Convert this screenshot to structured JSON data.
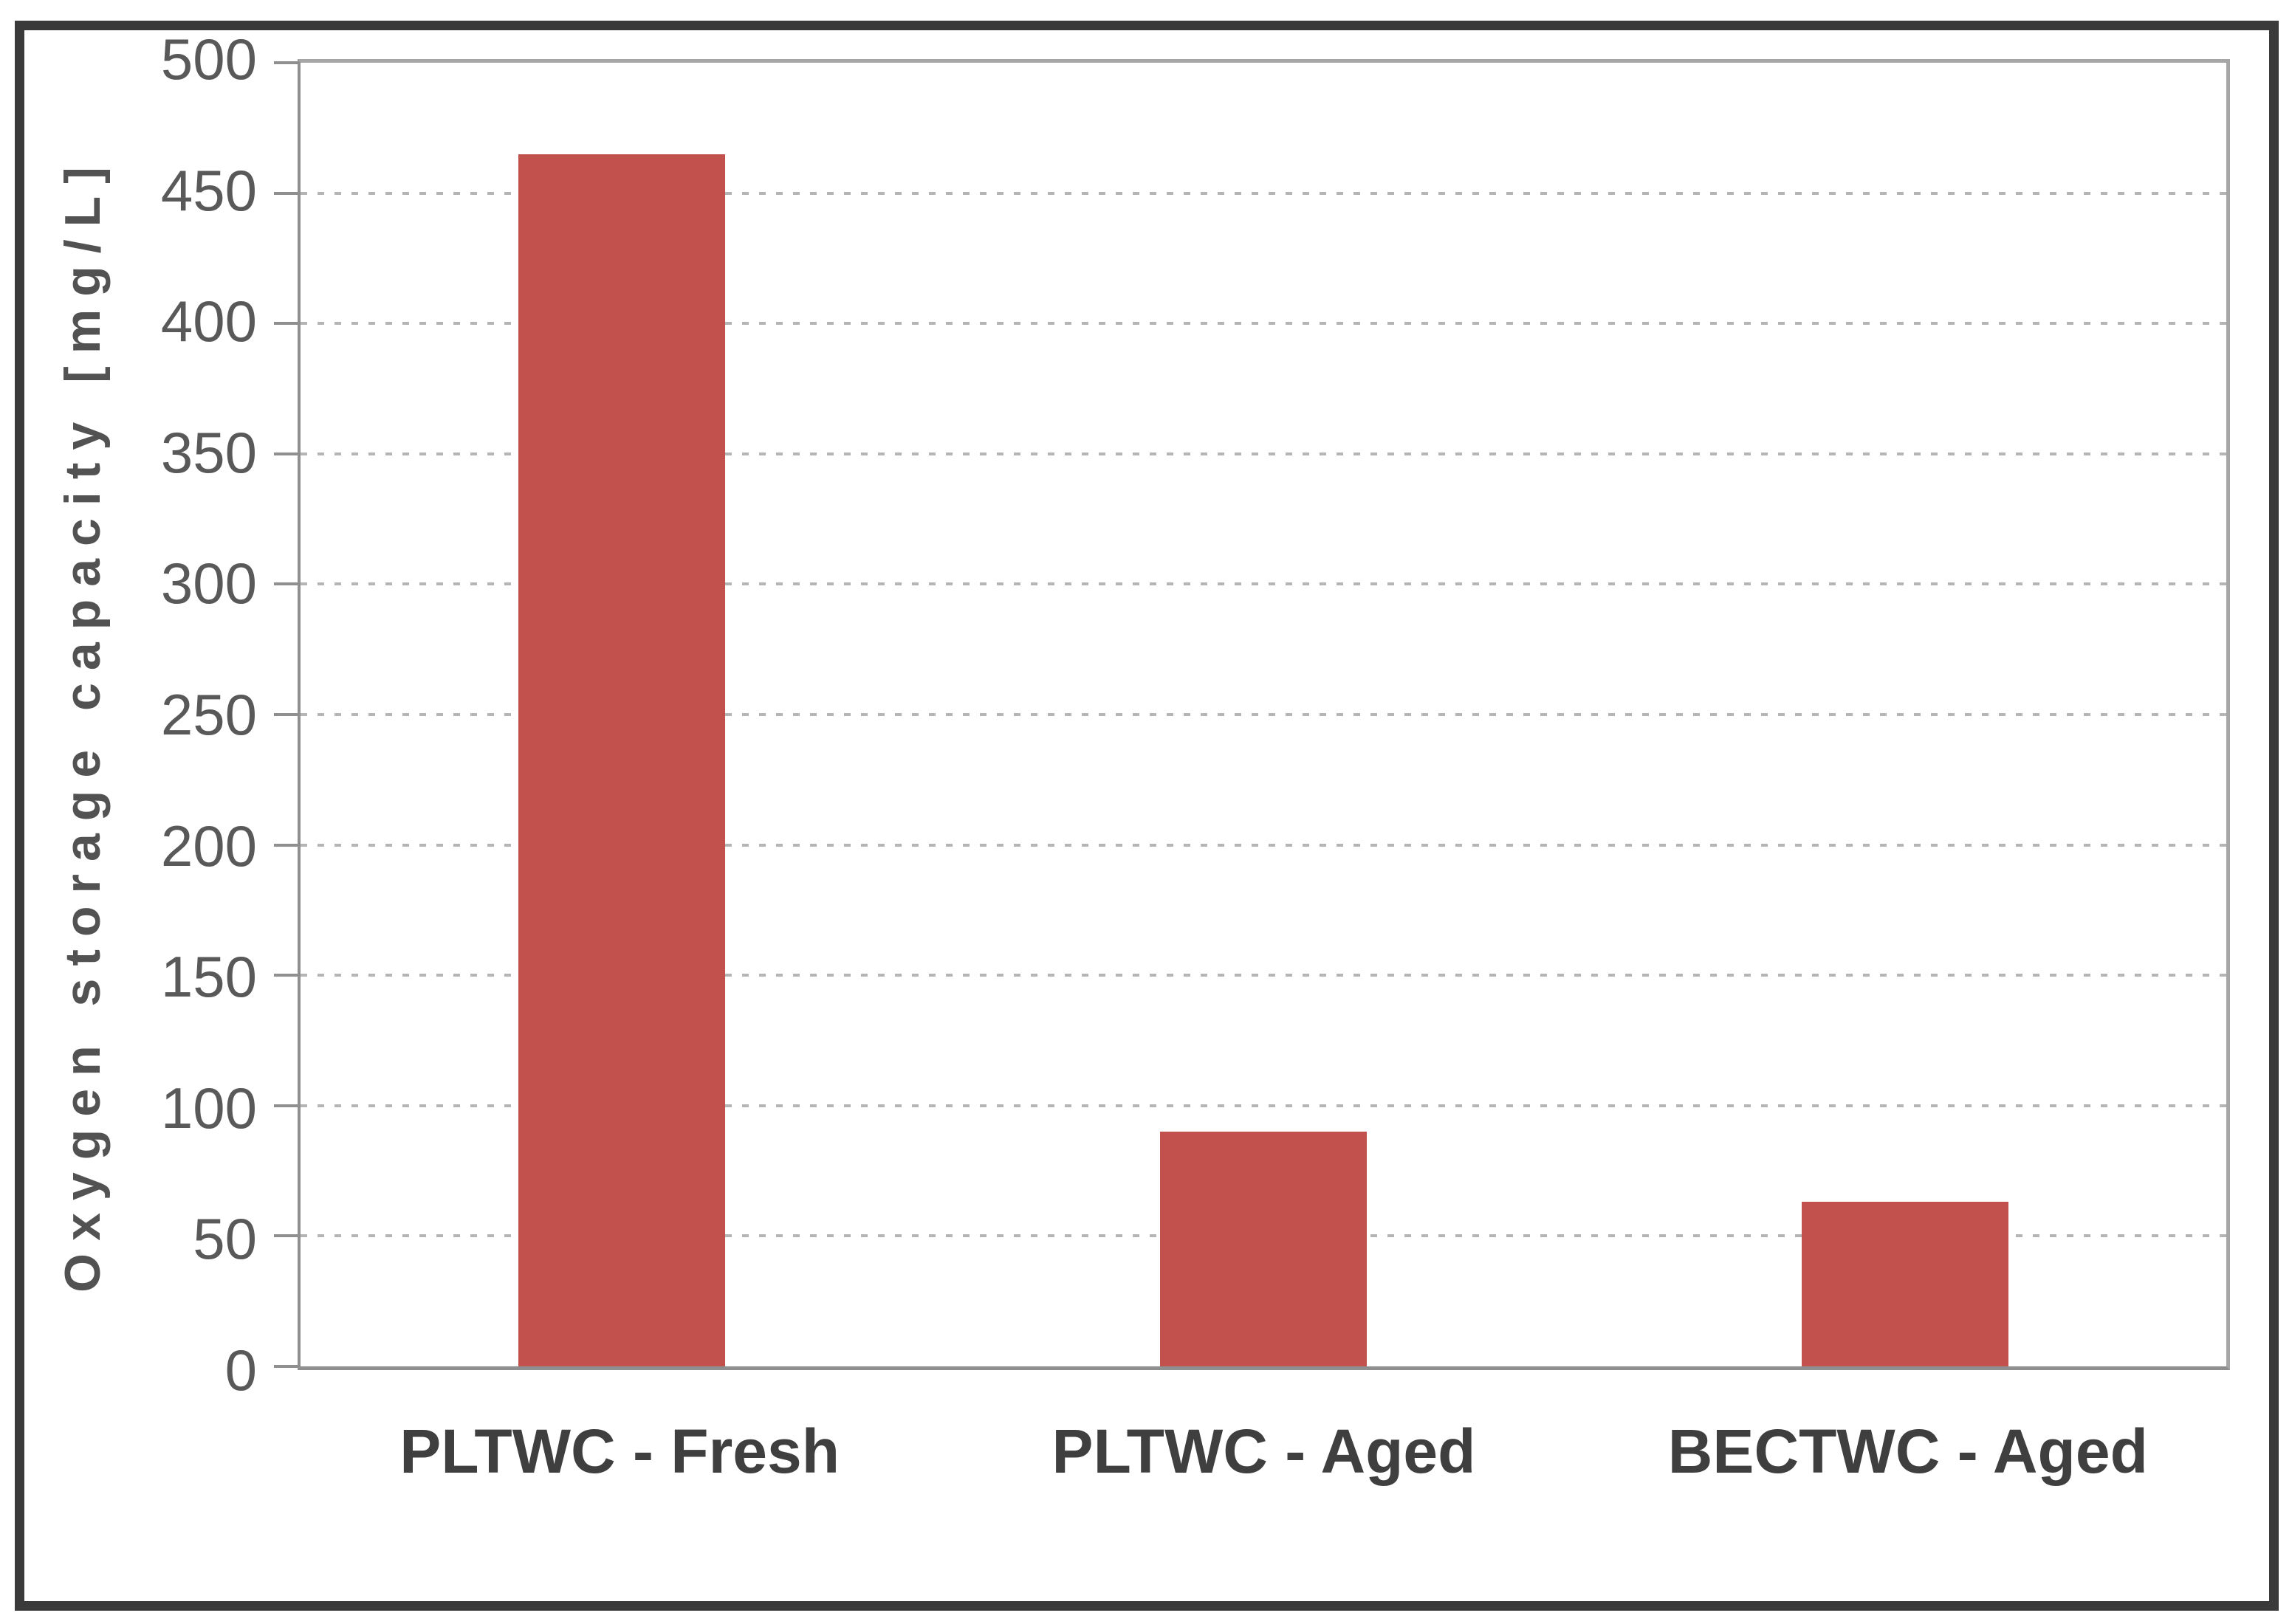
{
  "chart_data": {
    "type": "bar",
    "title": "",
    "xlabel": "",
    "ylabel": "Oxygen storage capacity [mg/L]",
    "categories": [
      "PLTWC - Fresh",
      "PLTWC - Aged",
      "BECTWC - Aged"
    ],
    "values": [
      465,
      90,
      63
    ],
    "ylim": [
      0,
      500
    ],
    "ytick_interval": 50,
    "yticks": [
      0,
      50,
      100,
      150,
      200,
      250,
      300,
      350,
      400,
      450,
      500
    ],
    "grid": "horizontal-dashed",
    "legend": "none",
    "colors": {
      "bar": "#c2504d",
      "gridline": "#b5b5b5",
      "axis_line": "#8f8f8f",
      "plot_border": "#a6a6a6",
      "tick_text": "#595959",
      "category_text": "#3f3f3f",
      "axis_title_text": "#525252",
      "outer_frame": "#3a3a3a",
      "background": "#ffffff"
    }
  }
}
